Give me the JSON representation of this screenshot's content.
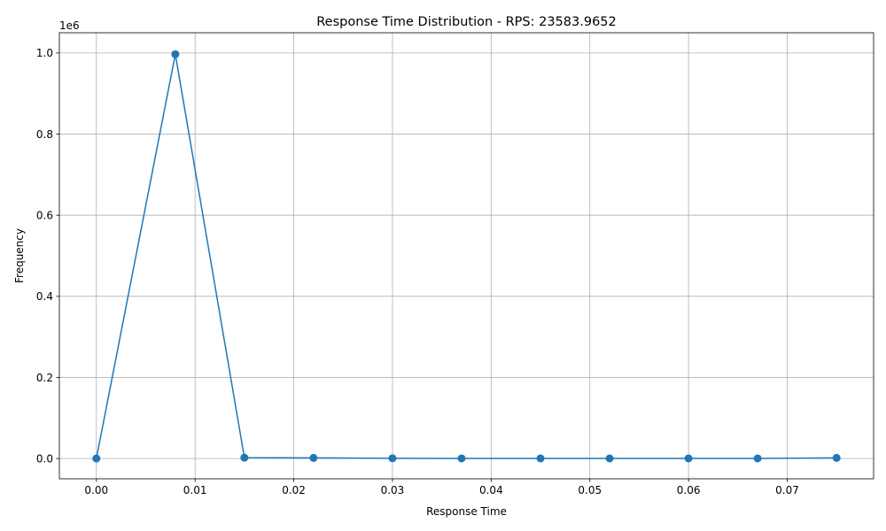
{
  "chart_data": {
    "type": "line",
    "title": "Response Time Distribution - RPS: 23583.9652",
    "xlabel": "Response Time",
    "ylabel": "Frequency",
    "y_offset_label": "1e6",
    "grid": true,
    "xlim": [
      -0.00375,
      0.07875
    ],
    "ylim": [
      -50000,
      1050000
    ],
    "x_ticks": [
      0.0,
      0.01,
      0.02,
      0.03,
      0.04,
      0.05,
      0.06,
      0.07
    ],
    "x_tick_labels": [
      "0.00",
      "0.01",
      "0.02",
      "0.03",
      "0.04",
      "0.05",
      "0.06",
      "0.07"
    ],
    "y_ticks": [
      0,
      200000,
      400000,
      600000,
      800000,
      1000000
    ],
    "y_tick_labels": [
      "0.0",
      "0.2",
      "0.4",
      "0.6",
      "0.8",
      "1.0"
    ],
    "series": [
      {
        "color": "#1f77b4",
        "marker": "circle",
        "x": [
          0.0,
          0.008,
          0.015,
          0.022,
          0.03,
          0.037,
          0.045,
          0.052,
          0.06,
          0.067,
          0.075
        ],
        "y": [
          0,
          997000,
          2000,
          1500,
          500,
          300,
          300,
          200,
          200,
          300,
          1500
        ]
      }
    ]
  }
}
